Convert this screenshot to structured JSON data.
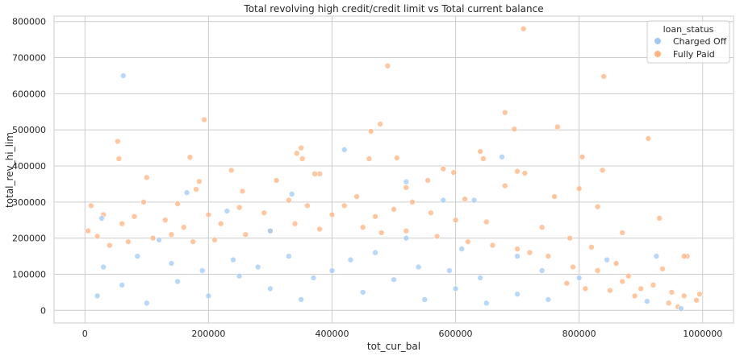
{
  "chart_data": {
    "type": "scatter",
    "title": "Total revolving high credit/credit limit vs Total current balance",
    "xlabel": "tot_cur_bal",
    "ylabel": "total_rev_hi_lim",
    "xlim": [
      -50000,
      1050000
    ],
    "ylim": [
      -35000,
      815000
    ],
    "x_ticks": [
      0,
      200000,
      400000,
      600000,
      800000,
      1000000
    ],
    "x_tick_labels": [
      "0",
      "200000",
      "400000",
      "600000",
      "800000",
      "1000000"
    ],
    "y_ticks": [
      0,
      100000,
      200000,
      300000,
      400000,
      500000,
      600000,
      700000,
      800000
    ],
    "y_tick_labels": [
      "0",
      "100000",
      "200000",
      "300000",
      "400000",
      "500000",
      "600000",
      "700000",
      "800000"
    ],
    "grid": true,
    "legend": {
      "title": "loan_status",
      "placement": "top-right",
      "entries": [
        "Charged Off",
        "Fully Paid"
      ]
    },
    "colors": {
      "Charged Off": "#a1c9f4",
      "Fully Paid": "#ffb482",
      "grid": "#cccccc",
      "frame": "#cccccc"
    },
    "series": [
      {
        "name": "Fully Paid",
        "points": [
          [
            710000,
            780000
          ],
          [
            490000,
            677000
          ],
          [
            840000,
            648000
          ],
          [
            680000,
            548000
          ],
          [
            193000,
            528000
          ],
          [
            695000,
            502000
          ],
          [
            463000,
            496000
          ],
          [
            765000,
            508000
          ],
          [
            912000,
            476000
          ],
          [
            478000,
            516000
          ],
          [
            53000,
            468000
          ],
          [
            55000,
            420000
          ],
          [
            170000,
            424000
          ],
          [
            350000,
            450000
          ],
          [
            343000,
            435000
          ],
          [
            352000,
            420000
          ],
          [
            460000,
            420000
          ],
          [
            505000,
            422000
          ],
          [
            580000,
            392000
          ],
          [
            597000,
            382000
          ],
          [
            640000,
            440000
          ],
          [
            645000,
            420000
          ],
          [
            700000,
            385000
          ],
          [
            712000,
            380000
          ],
          [
            805000,
            425000
          ],
          [
            838000,
            388000
          ],
          [
            380000,
            378000
          ],
          [
            372000,
            378000
          ],
          [
            100000,
            368000
          ],
          [
            237000,
            388000
          ],
          [
            310000,
            360000
          ],
          [
            150000,
            295000
          ],
          [
            180000,
            335000
          ],
          [
            185000,
            357000
          ],
          [
            255000,
            330000
          ],
          [
            440000,
            315000
          ],
          [
            520000,
            340000
          ],
          [
            555000,
            360000
          ],
          [
            615000,
            308000
          ],
          [
            680000,
            345000
          ],
          [
            760000,
            315000
          ],
          [
            800000,
            337000
          ],
          [
            830000,
            287000
          ],
          [
            870000,
            215000
          ],
          [
            930000,
            255000
          ],
          [
            975000,
            150000
          ],
          [
            970000,
            150000
          ],
          [
            995000,
            45000
          ],
          [
            990000,
            28000
          ],
          [
            945000,
            20000
          ],
          [
            900000,
            60000
          ],
          [
            860000,
            130000
          ],
          [
            880000,
            95000
          ],
          [
            820000,
            175000
          ],
          [
            785000,
            200000
          ],
          [
            740000,
            230000
          ],
          [
            720000,
            160000
          ],
          [
            650000,
            245000
          ],
          [
            600000,
            250000
          ],
          [
            560000,
            270000
          ],
          [
            530000,
            300000
          ],
          [
            500000,
            280000
          ],
          [
            470000,
            260000
          ],
          [
            420000,
            290000
          ],
          [
            400000,
            265000
          ],
          [
            360000,
            290000
          ],
          [
            330000,
            305000
          ],
          [
            290000,
            270000
          ],
          [
            250000,
            285000
          ],
          [
            220000,
            240000
          ],
          [
            200000,
            265000
          ],
          [
            160000,
            230000
          ],
          [
            130000,
            250000
          ],
          [
            110000,
            200000
          ],
          [
            80000,
            260000
          ],
          [
            60000,
            240000
          ],
          [
            30000,
            265000
          ],
          [
            10000,
            290000
          ],
          [
            20000,
            205000
          ],
          [
            40000,
            180000
          ],
          [
            5000,
            220000
          ],
          [
            95000,
            300000
          ],
          [
            70000,
            190000
          ],
          [
            140000,
            210000
          ],
          [
            175000,
            190000
          ],
          [
            210000,
            195000
          ],
          [
            260000,
            210000
          ],
          [
            300000,
            220000
          ],
          [
            340000,
            240000
          ],
          [
            380000,
            225000
          ],
          [
            450000,
            230000
          ],
          [
            480000,
            215000
          ],
          [
            520000,
            220000
          ],
          [
            570000,
            205000
          ],
          [
            620000,
            190000
          ],
          [
            660000,
            180000
          ],
          [
            700000,
            170000
          ],
          [
            750000,
            150000
          ],
          [
            790000,
            120000
          ],
          [
            830000,
            110000
          ],
          [
            870000,
            80000
          ],
          [
            920000,
            70000
          ],
          [
            950000,
            50000
          ],
          [
            935000,
            115000
          ],
          [
            960000,
            10000
          ],
          [
            970000,
            40000
          ],
          [
            890000,
            40000
          ],
          [
            850000,
            55000
          ],
          [
            810000,
            60000
          ],
          [
            780000,
            75000
          ]
        ]
      },
      {
        "name": "Charged Off",
        "points": [
          [
            62000,
            650000
          ],
          [
            420000,
            445000
          ],
          [
            675000,
            425000
          ],
          [
            165000,
            326000
          ],
          [
            335000,
            322000
          ],
          [
            520000,
            356000
          ],
          [
            630000,
            305000
          ],
          [
            580000,
            305000
          ],
          [
            27000,
            255000
          ],
          [
            230000,
            275000
          ],
          [
            120000,
            195000
          ],
          [
            300000,
            220000
          ],
          [
            520000,
            200000
          ],
          [
            610000,
            170000
          ],
          [
            700000,
            150000
          ],
          [
            740000,
            110000
          ],
          [
            800000,
            90000
          ],
          [
            845000,
            140000
          ],
          [
            925000,
            150000
          ],
          [
            965000,
            5000
          ],
          [
            910000,
            25000
          ],
          [
            20000,
            40000
          ],
          [
            60000,
            70000
          ],
          [
            100000,
            20000
          ],
          [
            150000,
            80000
          ],
          [
            200000,
            40000
          ],
          [
            250000,
            95000
          ],
          [
            300000,
            60000
          ],
          [
            350000,
            30000
          ],
          [
            400000,
            110000
          ],
          [
            450000,
            50000
          ],
          [
            500000,
            85000
          ],
          [
            550000,
            30000
          ],
          [
            600000,
            60000
          ],
          [
            650000,
            20000
          ],
          [
            700000,
            45000
          ],
          [
            750000,
            30000
          ],
          [
            30000,
            120000
          ],
          [
            85000,
            150000
          ],
          [
            140000,
            130000
          ],
          [
            190000,
            110000
          ],
          [
            240000,
            140000
          ],
          [
            280000,
            120000
          ],
          [
            330000,
            150000
          ],
          [
            370000,
            90000
          ],
          [
            430000,
            140000
          ],
          [
            470000,
            160000
          ],
          [
            540000,
            120000
          ],
          [
            590000,
            110000
          ],
          [
            640000,
            90000
          ]
        ]
      }
    ]
  }
}
